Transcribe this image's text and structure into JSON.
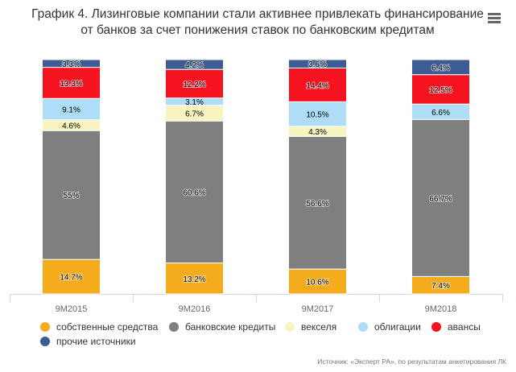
{
  "title_line1": "График 4. Лизинговые компании стали активнее привлекать финансирование",
  "title_line2": "от банков за счет понижения ставок по банковским кредитам",
  "menu_icon": "hamburger-menu-icon",
  "source": "Источник: «Эксперт РА», по результатам анкетирования ЛК",
  "colors": {
    "own_funds": "#F5AC1C",
    "bank_loans": "#7F7F7F",
    "bills": "#F8F4C0",
    "bonds": "#AEDDF7",
    "advances": "#F5131F",
    "other": "#3D5C94"
  },
  "chart_data": {
    "type": "bar",
    "stacked": true,
    "percent": true,
    "categories": [
      "9М2015",
      "9М2016",
      "9М2017",
      "9М2018"
    ],
    "series": [
      {
        "name": "собственные средства",
        "color_key": "own_funds",
        "values": [
          14.7,
          13.2,
          10.6,
          7.4
        ],
        "labels": [
          "14.7%",
          "13.2%",
          "10.6%",
          "7.4%"
        ]
      },
      {
        "name": "банковские кредиты",
        "color_key": "bank_loans",
        "values": [
          55,
          60.6,
          56.6,
          66.7
        ],
        "labels": [
          "55%",
          "60.6%",
          "56.6%",
          "66.7%"
        ]
      },
      {
        "name": "векселя",
        "color_key": "bills",
        "values": [
          4.6,
          6.7,
          4.3,
          0
        ],
        "labels": [
          "4.6%",
          "6.7%",
          "4.3%",
          ""
        ]
      },
      {
        "name": "облигации",
        "color_key": "bonds",
        "values": [
          9.1,
          3.1,
          10.5,
          6.6
        ],
        "labels": [
          "9.1%",
          "3.1%",
          "10.5%",
          "6.6%"
        ]
      },
      {
        "name": "авансы",
        "color_key": "advances",
        "values": [
          13.3,
          12.2,
          14.4,
          12.5
        ],
        "labels": [
          "13.3%",
          "12.2%",
          "14.4%",
          "12.5%"
        ]
      },
      {
        "name": "прочие источники",
        "color_key": "other",
        "values": [
          3.3,
          4.2,
          3.6,
          6.4
        ],
        "labels": [
          "3.3%",
          "4.2%",
          "3.6%",
          "6.4%"
        ]
      }
    ],
    "ylim": [
      0,
      100
    ],
    "grid": false,
    "legend_position": "bottom"
  }
}
